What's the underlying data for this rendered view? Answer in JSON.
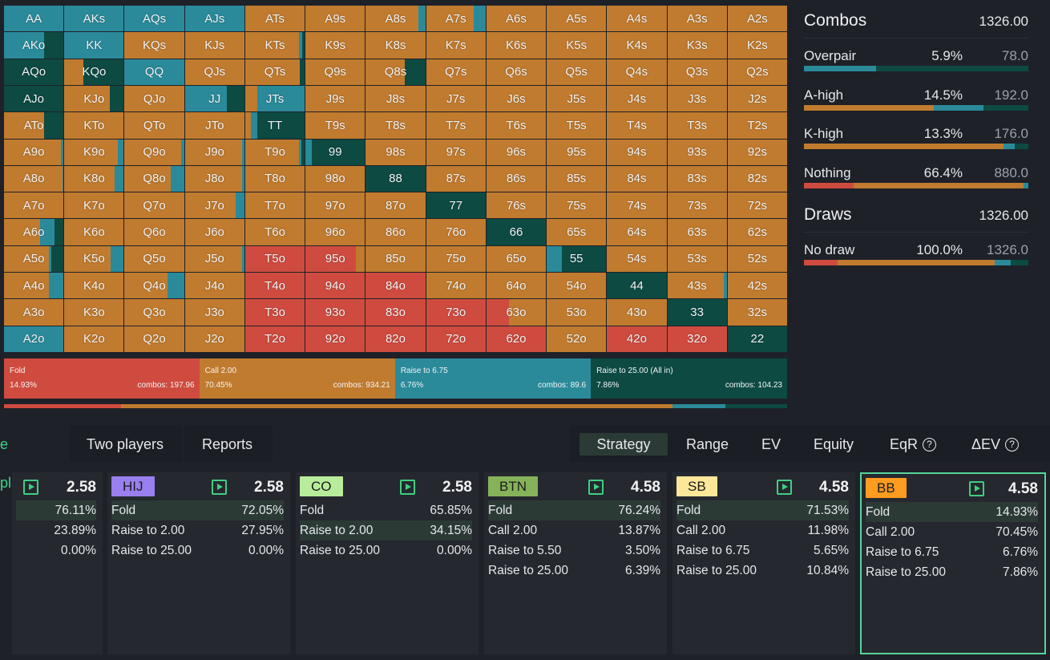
{
  "colors": {
    "fold": "#cf4b3f",
    "call": "#c07b2f",
    "raise": "#2a8a9a",
    "allin": "#0d4a42",
    "badge_hij": "#9a7ff0",
    "badge_co": "#b8ec9a",
    "badge_btn": "#86b25a",
    "badge_sb": "#ffe79a",
    "badge_bb": "#ff9c1f",
    "accent": "#3fd48a"
  },
  "grid": {
    "rows": [
      [
        "AA",
        "AKs",
        "AQs",
        "AJs",
        "ATs",
        "A9s",
        "A8s",
        "A7s",
        "A6s",
        "A5s",
        "A4s",
        "A3s",
        "A2s"
      ],
      [
        "AKo",
        "KK",
        "KQs",
        "KJs",
        "KTs",
        "K9s",
        "K8s",
        "K7s",
        "K6s",
        "K5s",
        "K4s",
        "K3s",
        "K2s"
      ],
      [
        "AQo",
        "KQo",
        "QQ",
        "QJs",
        "QTs",
        "Q9s",
        "Q8s",
        "Q7s",
        "Q6s",
        "Q5s",
        "Q4s",
        "Q3s",
        "Q2s"
      ],
      [
        "AJo",
        "KJo",
        "QJo",
        "JJ",
        "JTs",
        "J9s",
        "J8s",
        "J7s",
        "J6s",
        "J5s",
        "J4s",
        "J3s",
        "J2s"
      ],
      [
        "ATo",
        "KTo",
        "QTo",
        "JTo",
        "TT",
        "T9s",
        "T8s",
        "T7s",
        "T6s",
        "T5s",
        "T4s",
        "T3s",
        "T2s"
      ],
      [
        "A9o",
        "K9o",
        "Q9o",
        "J9o",
        "T9o",
        "99",
        "98s",
        "97s",
        "96s",
        "95s",
        "94s",
        "93s",
        "92s"
      ],
      [
        "A8o",
        "K8o",
        "Q8o",
        "J8o",
        "T8o",
        "98o",
        "88",
        "87s",
        "86s",
        "85s",
        "84s",
        "83s",
        "82s"
      ],
      [
        "A7o",
        "K7o",
        "Q7o",
        "J7o",
        "T7o",
        "97o",
        "87o",
        "77",
        "76s",
        "75s",
        "74s",
        "73s",
        "72s"
      ],
      [
        "A6o",
        "K6o",
        "Q6o",
        "J6o",
        "T6o",
        "96o",
        "86o",
        "76o",
        "66",
        "65s",
        "64s",
        "63s",
        "62s"
      ],
      [
        "A5o",
        "K5o",
        "Q5o",
        "J5o",
        "T5o",
        "95o",
        "85o",
        "75o",
        "65o",
        "55",
        "54s",
        "53s",
        "52s"
      ],
      [
        "A4o",
        "K4o",
        "Q4o",
        "J4o",
        "T4o",
        "94o",
        "84o",
        "74o",
        "64o",
        "54o",
        "44",
        "43s",
        "42s"
      ],
      [
        "A3o",
        "K3o",
        "Q3o",
        "J3o",
        "T3o",
        "93o",
        "83o",
        "73o",
        "63o",
        "53o",
        "43o",
        "33",
        "32s"
      ],
      [
        "A2o",
        "K2o",
        "Q2o",
        "J2o",
        "T2o",
        "92o",
        "82o",
        "72o",
        "62o",
        "52o",
        "42o",
        "32o",
        "22"
      ]
    ],
    "strategy_mix_note": "fold/call/raise/allin fractions per hand",
    "mix": {
      "AA": [
        0,
        0,
        1,
        0
      ],
      "AKs": [
        0,
        0,
        1,
        0
      ],
      "AQs": [
        0,
        0,
        1,
        0
      ],
      "AJs": [
        0,
        0,
        1,
        0
      ],
      "AKo": [
        0,
        0,
        0.68,
        0.32
      ],
      "KK": [
        0,
        0,
        1,
        0
      ],
      "AQo": [
        0,
        0,
        0,
        1
      ],
      "KQo": [
        0,
        0.32,
        0,
        0.68
      ],
      "QQ": [
        0,
        0,
        1,
        0
      ],
      "AJo": [
        0,
        0,
        0,
        1
      ],
      "KJo": [
        0,
        0.76,
        0,
        0.24
      ],
      "JJ": [
        0,
        0,
        0.7,
        0.3
      ],
      "JTs": [
        0,
        0.2,
        0.8,
        0
      ],
      "ATo": [
        0,
        0.68,
        0,
        0.32
      ],
      "TT": [
        0,
        0.1,
        0.1,
        0.8
      ],
      "99": [
        0,
        0,
        0.1,
        0.9
      ],
      "88": [
        0,
        0,
        0,
        1
      ],
      "77": [
        0,
        0,
        0,
        1
      ],
      "66": [
        0,
        0,
        0,
        1
      ],
      "55": [
        0,
        0,
        0.25,
        0.75
      ],
      "44": [
        0,
        0,
        0,
        1
      ],
      "33": [
        0,
        0,
        0,
        1
      ],
      "22": [
        0,
        0,
        0,
        1
      ],
      "A8s": [
        0,
        0.88,
        0.12,
        0
      ],
      "A7s": [
        0,
        0.8,
        0.2,
        0
      ],
      "KTs": [
        0,
        0.9,
        0.06,
        0.04
      ],
      "QTs": [
        0,
        0.92,
        0,
        0.08
      ],
      "Q8s": [
        0,
        0.66,
        0,
        0.34
      ],
      "A9o": [
        0,
        0.96,
        0.04,
        0
      ],
      "K9o": [
        0,
        0.9,
        0.1,
        0
      ],
      "Q9o": [
        0,
        0.95,
        0.05,
        0
      ],
      "J9o": [
        0,
        0.96,
        0.04,
        0
      ],
      "T9o": [
        0,
        0.9,
        0.05,
        0.05
      ],
      "A8o": [
        0,
        0.98,
        0.02,
        0
      ],
      "K8o": [
        0,
        0.84,
        0.16,
        0
      ],
      "Q8o": [
        0,
        0.78,
        0.22,
        0
      ],
      "J8o": [
        0,
        0.96,
        0.04,
        0
      ],
      "A7o": [
        0,
        1,
        0,
        0
      ],
      "J7o": [
        0,
        0.85,
        0.15,
        0
      ],
      "A6o": [
        0,
        0.6,
        0.25,
        0.15
      ],
      "A5o": [
        0,
        0.75,
        0.05,
        0.2
      ],
      "K5o": [
        0,
        0.78,
        0.22,
        0
      ],
      "J5o": [
        0,
        0.96,
        0.04,
        0
      ],
      "A4o": [
        0,
        0.75,
        0.25,
        0
      ],
      "Q4o": [
        0,
        0.72,
        0.28,
        0
      ],
      "A2o": [
        0,
        0,
        1,
        0
      ],
      "T5o": [
        1,
        0,
        0,
        0
      ],
      "T4o": [
        1,
        0,
        0,
        0
      ],
      "T3o": [
        1,
        0,
        0,
        0
      ],
      "T2o": [
        1,
        0,
        0,
        0
      ],
      "95o": [
        0.85,
        0.15,
        0,
        0
      ],
      "94o": [
        1,
        0,
        0,
        0
      ],
      "93o": [
        1,
        0,
        0,
        0
      ],
      "92o": [
        1,
        0,
        0,
        0
      ],
      "84o": [
        1,
        0,
        0,
        0
      ],
      "83o": [
        1,
        0,
        0,
        0
      ],
      "82o": [
        1,
        0,
        0,
        0
      ],
      "73o": [
        1,
        0,
        0,
        0
      ],
      "72o": [
        1,
        0,
        0,
        0
      ],
      "63o": [
        0.38,
        0.62,
        0,
        0
      ],
      "62o": [
        1,
        0,
        0,
        0
      ],
      "42o": [
        1,
        0,
        0,
        0
      ],
      "32o": [
        1,
        0,
        0,
        0
      ],
      "43s": [
        0,
        0.95,
        0.05,
        0
      ],
      "86s": [
        0,
        1,
        0,
        0
      ]
    },
    "default_mix": [
      0,
      1,
      0,
      0
    ]
  },
  "summary": [
    {
      "name": "Fold",
      "pct": "14.93%",
      "combos": "combos: 197.96",
      "share": 0.2493,
      "color": "#cf4b3f"
    },
    {
      "name": "Call 2.00",
      "pct": "70.45%",
      "combos": "combos: 934.21",
      "share": 0.25,
      "color": "#c07b2f"
    },
    {
      "name": "Raise to 6.75",
      "pct": "6.76%",
      "combos": "combos: 89.6",
      "share": 0.25,
      "color": "#2a8a9a"
    },
    {
      "name": "Raise to 25.00 (All in)",
      "pct": "7.86%",
      "combos": "combos: 104.23",
      "share": 0.2507,
      "color": "#0d4a42"
    }
  ],
  "thinbar": [
    {
      "share": 0.1493,
      "color": "#cf4b3f"
    },
    {
      "share": 0.7045,
      "color": "#c07b2f"
    },
    {
      "share": 0.0676,
      "color": "#2a8a9a"
    },
    {
      "share": 0.0786,
      "color": "#0d4a42"
    }
  ],
  "stats": {
    "combos_title": "Combos",
    "combos_total": "1326.00",
    "combos_rows": [
      {
        "name": "Overpair",
        "pct": "5.9%",
        "count": "78.0",
        "bar": [
          0,
          0,
          0.32,
          0.68
        ]
      },
      {
        "name": "A-high",
        "pct": "14.5%",
        "count": "192.0",
        "bar": [
          0,
          0.58,
          0.22,
          0.2
        ]
      },
      {
        "name": "K-high",
        "pct": "13.3%",
        "count": "176.0",
        "bar": [
          0,
          0.89,
          0.05,
          0.06
        ]
      },
      {
        "name": "Nothing",
        "pct": "66.4%",
        "count": "880.0",
        "bar": [
          0.22,
          0.76,
          0.02,
          0
        ]
      }
    ],
    "draws_title": "Draws",
    "draws_total": "1326.00",
    "draws_rows": [
      {
        "name": "No draw",
        "pct": "100.0%",
        "count": "1326.0",
        "bar": [
          0.15,
          0.7,
          0.07,
          0.08
        ]
      }
    ]
  },
  "tabs": {
    "left": [
      "e player",
      "Two players",
      "Reports"
    ],
    "right": [
      "Strategy",
      "Range",
      "EV",
      "Equity",
      "EqR",
      "ΔEV"
    ]
  },
  "cards": [
    {
      "badge": "",
      "stack": "2.58",
      "actions": [
        {
          "label": "",
          "pct": "76.11%",
          "hl": true
        },
        {
          "label": "",
          "pct": "23.89%",
          "hl": false
        },
        {
          "label": "",
          "pct": "0.00%",
          "hl": false
        }
      ]
    },
    {
      "badge": "HIJ",
      "badge_color": "#9a7ff0",
      "stack": "2.58",
      "actions": [
        {
          "label": "Fold",
          "pct": "72.05%",
          "hl": true
        },
        {
          "label": "Raise to 2.00",
          "pct": "27.95%",
          "hl": false
        },
        {
          "label": "Raise to 25.00",
          "pct": "0.00%",
          "hl": false
        }
      ]
    },
    {
      "badge": "CO",
      "badge_color": "#b8ec9a",
      "stack": "2.58",
      "actions": [
        {
          "label": "Fold",
          "pct": "65.85%",
          "hl": false
        },
        {
          "label": "Raise to 2.00",
          "pct": "34.15%",
          "hl": true
        },
        {
          "label": "Raise to 25.00",
          "pct": "0.00%",
          "hl": false
        }
      ]
    },
    {
      "badge": "BTN",
      "badge_color": "#86b25a",
      "stack": "4.58",
      "actions": [
        {
          "label": "Fold",
          "pct": "76.24%",
          "hl": true
        },
        {
          "label": "Call 2.00",
          "pct": "13.87%",
          "hl": false
        },
        {
          "label": "Raise to 5.50",
          "pct": "3.50%",
          "hl": false
        },
        {
          "label": "Raise to 25.00",
          "pct": "6.39%",
          "hl": false
        }
      ]
    },
    {
      "badge": "SB",
      "badge_color": "#ffe79a",
      "stack": "4.58",
      "actions": [
        {
          "label": "Fold",
          "pct": "71.53%",
          "hl": true
        },
        {
          "label": "Call 2.00",
          "pct": "11.98%",
          "hl": false
        },
        {
          "label": "Raise to 6.75",
          "pct": "5.65%",
          "hl": false
        },
        {
          "label": "Raise to 25.00",
          "pct": "10.84%",
          "hl": false
        }
      ]
    },
    {
      "badge": "BB",
      "badge_color": "#ff9c1f",
      "stack": "4.58",
      "selected": true,
      "actions": [
        {
          "label": "Fold",
          "pct": "14.93%",
          "hl": true
        },
        {
          "label": "Call 2.00",
          "pct": "70.45%",
          "hl": false
        },
        {
          "label": "Raise to 6.75",
          "pct": "6.76%",
          "hl": false
        },
        {
          "label": "Raise to 25.00",
          "pct": "7.86%",
          "hl": false
        }
      ]
    }
  ]
}
